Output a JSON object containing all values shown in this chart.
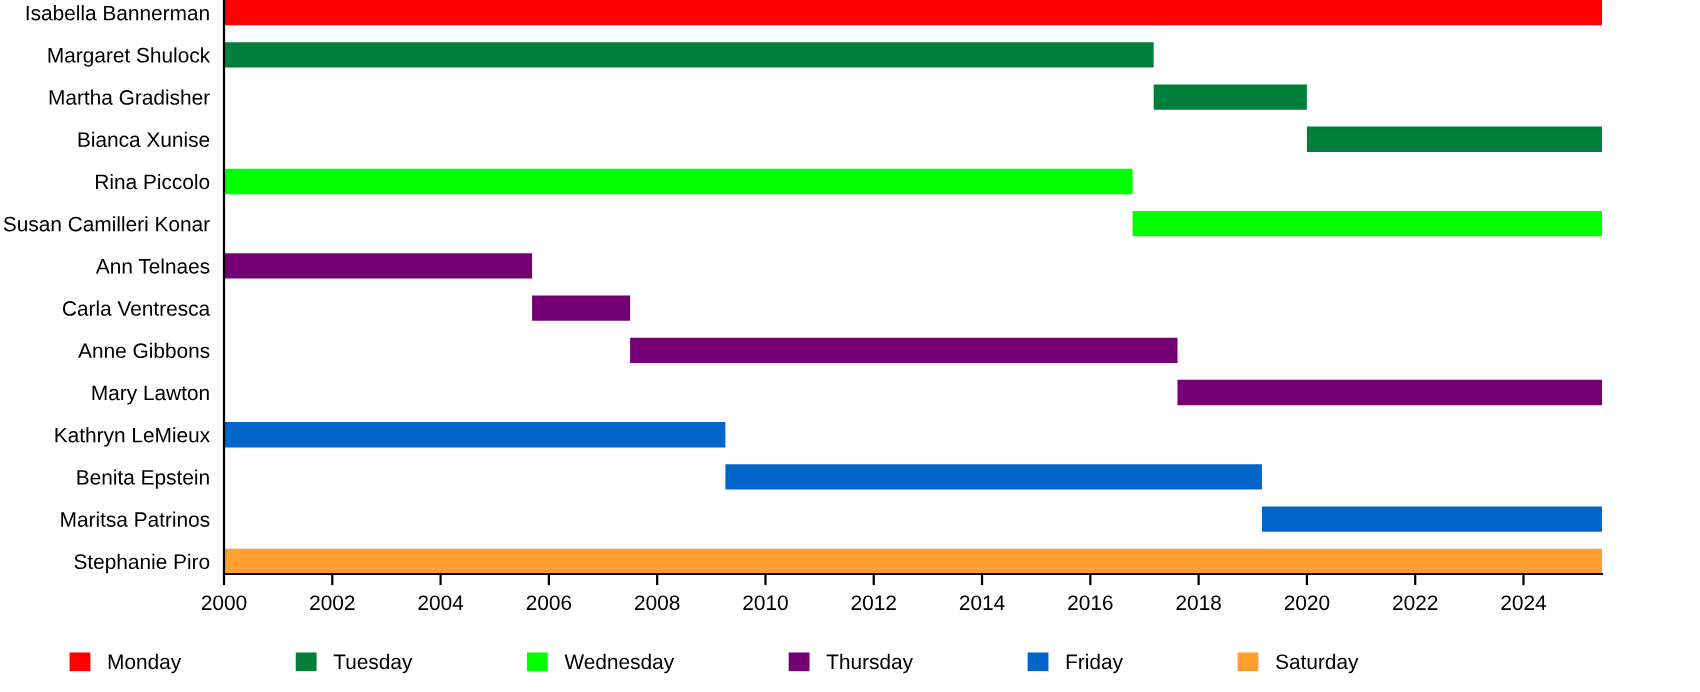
{
  "chart_data": {
    "type": "bar",
    "orientation": "horizontal",
    "categories": [
      "Isabella Bannerman",
      "Margaret Shulock",
      "Martha Gradisher",
      "Bianca Xunise",
      "Rina Piccolo",
      "Susan Camilleri Konar",
      "Ann Telnaes",
      "Carla Ventresca",
      "Anne Gibbons",
      "Mary Lawton",
      "Kathryn LeMieux",
      "Benita Epstein",
      "Maritsa Patrinos",
      "Stephanie Piro"
    ],
    "series": [
      {
        "name": "Monday",
        "color": "#ff0000",
        "base": [
          2000,
          null,
          null,
          null,
          null,
          null,
          null,
          null,
          null,
          null,
          null,
          null,
          null,
          null
        ],
        "values": [
          25.45,
          null,
          null,
          null,
          null,
          null,
          null,
          null,
          null,
          null,
          null,
          null,
          null,
          null
        ]
      },
      {
        "name": "Tuesday",
        "color": "#007f3b",
        "base": [
          null,
          2000,
          2017.17,
          2020.0,
          null,
          null,
          null,
          null,
          null,
          null,
          null,
          null,
          null,
          null
        ],
        "values": [
          null,
          17.17,
          2.83,
          5.45,
          null,
          null,
          null,
          null,
          null,
          null,
          null,
          null,
          null,
          null
        ]
      },
      {
        "name": "Wednesday",
        "color": "#00ff00",
        "base": [
          null,
          null,
          null,
          null,
          2000,
          2016.78,
          null,
          null,
          null,
          null,
          null,
          null,
          null,
          null
        ],
        "values": [
          null,
          null,
          null,
          null,
          16.78,
          8.67,
          null,
          null,
          null,
          null,
          null,
          null,
          null,
          null
        ]
      },
      {
        "name": "Thursday",
        "color": "#750075",
        "base": [
          null,
          null,
          null,
          null,
          null,
          null,
          2000,
          2005.69,
          2007.5,
          2017.61,
          null,
          null,
          null,
          null
        ],
        "values": [
          null,
          null,
          null,
          null,
          null,
          null,
          5.69,
          1.81,
          10.11,
          7.84,
          null,
          null,
          null,
          null
        ]
      },
      {
        "name": "Friday",
        "color": "#0066cc",
        "base": [
          null,
          null,
          null,
          null,
          null,
          null,
          null,
          null,
          null,
          null,
          2000,
          2009.26,
          2019.17,
          null
        ],
        "values": [
          null,
          null,
          null,
          null,
          null,
          null,
          null,
          null,
          null,
          null,
          9.26,
          9.91,
          6.28,
          null
        ]
      },
      {
        "name": "Saturday",
        "color": "#ff9f2f",
        "base": [
          null,
          null,
          null,
          null,
          null,
          null,
          null,
          null,
          null,
          null,
          null,
          null,
          null,
          2000
        ],
        "values": [
          null,
          null,
          null,
          null,
          null,
          null,
          null,
          null,
          null,
          null,
          null,
          null,
          null,
          25.45
        ]
      }
    ],
    "xlim": [
      2000,
      2025.45
    ],
    "xticks": [
      2000,
      2002,
      2004,
      2006,
      2008,
      2010,
      2012,
      2014,
      2016,
      2018,
      2020,
      2022,
      2024
    ],
    "grid": false,
    "legend": "bottom"
  }
}
